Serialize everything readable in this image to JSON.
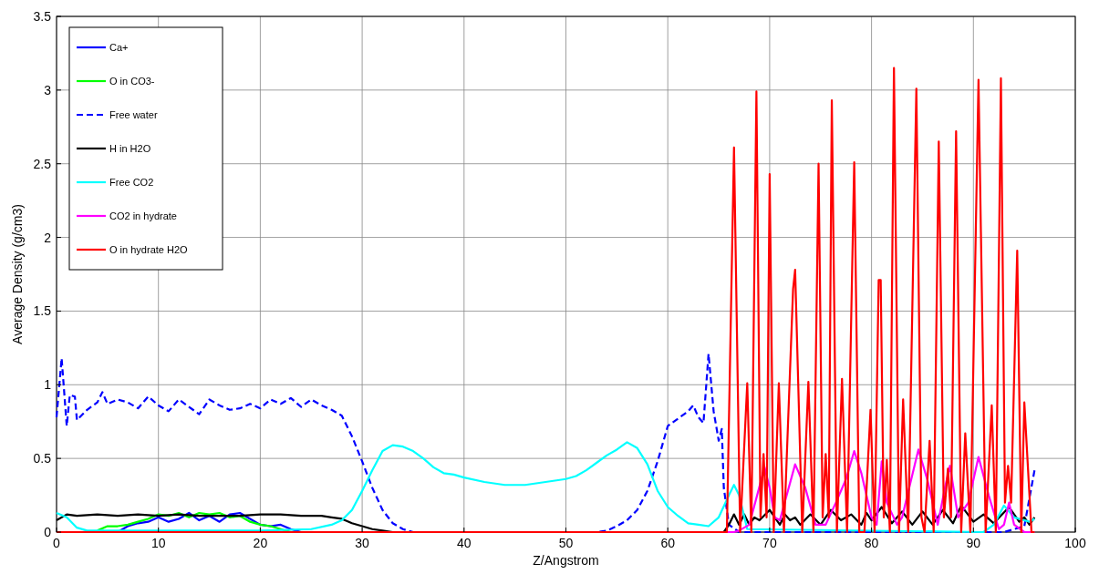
{
  "chart_data": {
    "type": "line",
    "xlabel": "Z/Angstrom",
    "ylabel": "Average Density (g/cm3)",
    "xlim": [
      0,
      100
    ],
    "ylim": [
      0,
      3.5
    ],
    "xticks": [
      0,
      10,
      20,
      30,
      40,
      50,
      60,
      70,
      80,
      90,
      100
    ],
    "yticks": [
      0,
      0.5,
      1,
      1.5,
      2,
      2.5,
      3,
      3.5
    ],
    "grid": true,
    "legend": "top left",
    "series": [
      {
        "name": "Ca+",
        "color": "#0000ff",
        "line_style": "solid",
        "x": [
          6,
          7,
          8,
          9,
          10,
          11,
          12,
          13,
          14,
          15,
          16,
          17,
          18,
          19,
          20,
          21,
          22,
          23,
          24
        ],
        "values": [
          0,
          0.04,
          0.06,
          0.07,
          0.1,
          0.07,
          0.09,
          0.13,
          0.08,
          0.11,
          0.07,
          0.12,
          0.13,
          0.09,
          0.05,
          0.04,
          0.05,
          0.02,
          0
        ]
      },
      {
        "name": "O in CO3-",
        "color": "#00ff00",
        "line_style": "solid",
        "x": [
          4,
          5,
          6,
          7,
          8,
          9,
          10,
          11,
          12,
          13,
          14,
          15,
          16,
          17,
          18,
          19,
          20,
          21,
          22,
          23
        ],
        "values": [
          0.01,
          0.04,
          0.04,
          0.05,
          0.07,
          0.09,
          0.12,
          0.11,
          0.13,
          0.1,
          0.13,
          0.12,
          0.13,
          0.1,
          0.11,
          0.07,
          0.05,
          0.04,
          0.02,
          0
        ]
      },
      {
        "name": "Free water",
        "color": "#0000ff",
        "line_style": "dashed",
        "x": [
          0,
          0.5,
          1,
          1.3,
          1.8,
          2,
          3,
          4,
          4.5,
          5,
          6,
          7,
          8,
          9,
          10,
          11,
          12,
          13,
          14,
          15,
          16,
          17,
          18,
          19,
          20,
          21,
          22,
          23,
          24,
          25,
          26,
          27,
          28,
          29,
          30,
          31,
          32,
          33,
          34,
          35,
          53,
          54,
          55,
          56,
          57,
          58,
          59,
          60,
          61,
          62,
          62.5,
          63,
          63.5,
          64,
          64.5,
          65,
          65.3,
          65.5,
          66,
          67,
          93,
          94,
          95,
          96
        ],
        "values": [
          0.78,
          1.18,
          0.72,
          0.93,
          0.92,
          0.76,
          0.83,
          0.88,
          0.95,
          0.87,
          0.9,
          0.88,
          0.84,
          0.92,
          0.86,
          0.82,
          0.9,
          0.85,
          0.8,
          0.9,
          0.86,
          0.83,
          0.84,
          0.87,
          0.84,
          0.9,
          0.87,
          0.91,
          0.85,
          0.9,
          0.86,
          0.83,
          0.79,
          0.65,
          0.48,
          0.3,
          0.15,
          0.06,
          0.02,
          0,
          0,
          0.01,
          0.04,
          0.08,
          0.15,
          0.28,
          0.48,
          0.72,
          0.77,
          0.82,
          0.86,
          0.78,
          0.74,
          1.21,
          0.82,
          0.62,
          0.7,
          0.3,
          0.05,
          0,
          0,
          0.02,
          0.04,
          0.42
        ]
      },
      {
        "name": "H in H2O",
        "color": "#000000",
        "line_style": "solid",
        "x": [
          0,
          1,
          2,
          4,
          6,
          8,
          10,
          12,
          14,
          16,
          18,
          20,
          22,
          24,
          26,
          27,
          28,
          29,
          30,
          31,
          32,
          33,
          34,
          65.5,
          66,
          66.5,
          67,
          67.5,
          68,
          68.5,
          69,
          70,
          70.5,
          71,
          71.5,
          72,
          72.5,
          73,
          74,
          75,
          76,
          77,
          78,
          79,
          79.5,
          80,
          81,
          82,
          83,
          84,
          85,
          86,
          87,
          88,
          88.8,
          90,
          91,
          92,
          93.5,
          94.5,
          95,
          95.5,
          96
        ],
        "values": [
          0.08,
          0.12,
          0.11,
          0.12,
          0.11,
          0.12,
          0.11,
          0.12,
          0.11,
          0.11,
          0.11,
          0.12,
          0.12,
          0.11,
          0.11,
          0.1,
          0.09,
          0.06,
          0.04,
          0.02,
          0.01,
          0,
          0,
          0,
          0.05,
          0.12,
          0.05,
          0.12,
          0.05,
          0.1,
          0.08,
          0.15,
          0.1,
          0.05,
          0.12,
          0.08,
          0.1,
          0.05,
          0.12,
          0.05,
          0.15,
          0.08,
          0.12,
          0.05,
          0.13,
          0.08,
          0.17,
          0.06,
          0.14,
          0.05,
          0.14,
          0.05,
          0.15,
          0.06,
          0.18,
          0.07,
          0.12,
          0.06,
          0.17,
          0.07,
          0.1,
          0.05,
          0.1
        ]
      },
      {
        "name": "Free CO2",
        "color": "#00ffff",
        "line_style": "solid",
        "x": [
          0,
          1,
          2,
          3,
          10,
          20,
          25,
          27,
          28,
          29,
          30,
          31,
          32,
          33,
          34,
          35,
          36,
          37,
          38,
          39,
          40,
          42,
          44,
          46,
          48,
          50,
          51,
          52,
          53,
          54,
          55,
          56,
          57,
          58,
          59,
          60,
          61,
          62,
          63,
          64,
          65,
          66,
          66.5,
          67,
          67.8,
          91,
          92,
          93,
          94,
          95.5,
          96
        ],
        "values": [
          0.13,
          0.1,
          0.03,
          0.01,
          0.01,
          0.01,
          0.02,
          0.05,
          0.08,
          0.15,
          0.28,
          0.42,
          0.55,
          0.59,
          0.58,
          0.55,
          0.5,
          0.44,
          0.4,
          0.39,
          0.37,
          0.34,
          0.32,
          0.32,
          0.34,
          0.36,
          0.38,
          0.42,
          0.47,
          0.52,
          0.56,
          0.61,
          0.57,
          0.46,
          0.28,
          0.17,
          0.11,
          0.06,
          0.05,
          0.04,
          0.1,
          0.25,
          0.32,
          0.25,
          0.02,
          0,
          0.05,
          0.18,
          0.1,
          0.07,
          0.09
        ]
      },
      {
        "name": "CO2 in hydrate",
        "color": "#ff00ff",
        "line_style": "solid",
        "x": [
          0,
          66.5,
          67,
          68,
          69.5,
          70,
          70.5,
          71,
          72.5,
          73.5,
          74.5,
          75.5,
          76.5,
          77.5,
          78.3,
          79,
          80,
          80.5,
          81,
          81.5,
          82.5,
          83,
          84.6,
          85.5,
          86.5,
          87.2,
          87.7,
          88.5,
          89.5,
          90.5,
          91.5,
          92.5,
          93,
          93.5,
          94,
          95,
          96
        ],
        "values": [
          0,
          0,
          0.01,
          0.05,
          0.44,
          0.3,
          0.1,
          0.08,
          0.46,
          0.3,
          0.05,
          0.05,
          0.2,
          0.36,
          0.55,
          0.4,
          0.1,
          0.05,
          0.48,
          0.2,
          0.05,
          0.1,
          0.56,
          0.35,
          0.05,
          0.3,
          0.45,
          0.1,
          0.2,
          0.51,
          0.25,
          0.02,
          0.05,
          0.2,
          0.05,
          0,
          0
        ]
      },
      {
        "name": "O in hydrate H2O",
        "color": "#ff0000",
        "line_style": "solid",
        "x": [
          0,
          65.8,
          66.5,
          67.1,
          67.8,
          68.2,
          68.7,
          69.1,
          69.4,
          69.7,
          70.0,
          70.4,
          70.9,
          71.4,
          72.3,
          72.5,
          73.2,
          73.8,
          74.3,
          74.8,
          75.2,
          75.5,
          75.8,
          76.1,
          76.6,
          77.1,
          77.6,
          78.3,
          78.8,
          79.3,
          79.9,
          80.3,
          80.7,
          80.9,
          81.2,
          81.5,
          81.8,
          82.2,
          82.7,
          83.1,
          83.6,
          84.4,
          84.9,
          85.2,
          85.7,
          86.1,
          86.6,
          87.1,
          87.5,
          87.8,
          88.3,
          88.8,
          89.2,
          89.7,
          90.5,
          91.2,
          91.8,
          92.2,
          92.7,
          93.1,
          93.4,
          93.7,
          94.3,
          94.7,
          95.0,
          95.7,
          96
        ],
        "values": [
          0,
          0,
          2.61,
          0,
          1.01,
          0,
          2.99,
          0.1,
          0.53,
          0.1,
          2.43,
          0,
          1.01,
          0,
          1.65,
          1.78,
          0,
          1.02,
          0,
          2.5,
          0.1,
          0.53,
          0.1,
          2.93,
          0,
          1.04,
          0,
          2.51,
          0,
          0,
          0.83,
          0,
          1.71,
          1.71,
          0.1,
          0.49,
          0,
          3.15,
          0,
          0.9,
          0,
          3.01,
          0.1,
          0,
          0.62,
          0,
          2.65,
          0.1,
          0.43,
          0.1,
          2.72,
          0,
          0.67,
          0,
          3.07,
          0,
          0.86,
          0,
          3.08,
          0.2,
          0.45,
          0.2,
          1.91,
          0,
          0.88,
          0,
          0
        ]
      }
    ]
  }
}
